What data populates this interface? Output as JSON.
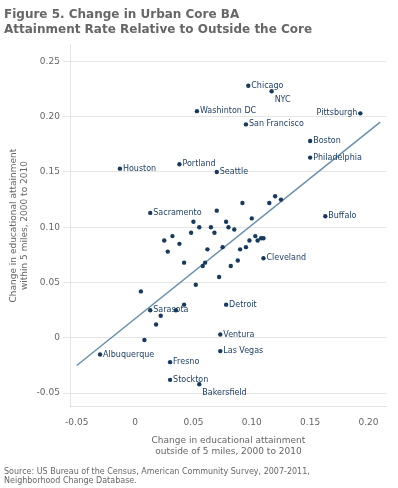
{
  "chart_data": {
    "type": "scatter",
    "title": "Figure 5. Change in Urban Core BA\nAttainment Rate Relative to Outside the Core",
    "xlabel": "Change in educational attainment\noutside of 5 miles, 2000 to 2010",
    "ylabel": "Change in educational attainment\nwithin 5 miles, 2000 to 2010",
    "source": "Source: US Bureau of the Census, American Community Survey, 2007-2011,\nNeighborhood Change Database.",
    "xlim": [
      -0.055,
      0.215
    ],
    "ylim": [
      -0.062,
      0.265
    ],
    "xticks": [
      -0.05,
      0,
      0.05,
      {
        "value": 0.1,
        "label": "0.10"
      },
      0.15,
      {
        "value": 0.2,
        "label": "0.20"
      }
    ],
    "yticks": [
      -0.05,
      0,
      0.05,
      {
        "value": 0.1,
        "label": "0.10"
      },
      0.15,
      {
        "value": 0.2,
        "label": "0.20"
      },
      0.25
    ],
    "grid": "y",
    "series": [
      {
        "type": "scatter",
        "color": "#1a3a5c",
        "x": [
          0.097,
          0.117,
          0.193,
          0.095,
          0.15,
          0.15,
          0.053,
          0.038,
          0.07,
          -0.013,
          0.013,
          0.163,
          0.11,
          0.078,
          0.013,
          0.073,
          0.073,
          0.03,
          0.03,
          0.055,
          -0.03,
          0.025,
          0.028,
          0.032,
          0.038,
          0.042,
          0.048,
          0.05,
          0.052,
          0.055,
          0.058,
          0.06,
          0.062,
          0.065,
          0.068,
          0.07,
          0.072,
          0.075,
          0.078,
          0.08,
          0.082,
          0.085,
          0.088,
          0.09,
          0.092,
          0.095,
          0.098,
          0.1,
          0.103,
          0.105,
          0.108,
          0.11,
          0.115,
          0.12,
          0.125,
          0.018,
          0.022,
          0.035,
          0.042,
          0.005,
          0.008
        ],
        "values": [
          0.228,
          0.223,
          0.203,
          0.193,
          0.178,
          0.163,
          0.205,
          0.157,
          0.15,
          0.153,
          0.113,
          0.11,
          0.072,
          0.03,
          0.025,
          0.003,
          -0.012,
          -0.022,
          -0.038,
          -0.042,
          -0.015,
          0.088,
          0.078,
          0.092,
          0.085,
          0.068,
          0.095,
          0.105,
          0.048,
          0.1,
          0.065,
          0.068,
          0.08,
          0.1,
          0.095,
          0.115,
          0.055,
          0.082,
          0.105,
          0.1,
          0.065,
          0.098,
          0.07,
          0.08,
          0.122,
          0.082,
          0.088,
          0.108,
          0.092,
          0.088,
          0.09,
          0.09,
          0.122,
          0.128,
          0.125,
          0.012,
          0.02,
          0.025,
          0.03,
          0.042,
          -0.002
        ]
      },
      {
        "type": "line",
        "color": "#6b8fa8",
        "x": [
          -0.05,
          0.21
        ],
        "values": [
          -0.025,
          0.195
        ]
      }
    ],
    "annotations": [
      {
        "text": "Chicago",
        "x": 0.097,
        "y": 0.228
      },
      {
        "text": "NYC",
        "x": 0.117,
        "y": 0.223
      },
      {
        "text": "Pittsburgh",
        "x": 0.193,
        "y": 0.203
      },
      {
        "text": "San Francisco",
        "x": 0.095,
        "y": 0.193
      },
      {
        "text": "Boston",
        "x": 0.15,
        "y": 0.178
      },
      {
        "text": "Philadelphia",
        "x": 0.15,
        "y": 0.163
      },
      {
        "text": "Washinton DC",
        "x": 0.053,
        "y": 0.205
      },
      {
        "text": "Portland",
        "x": 0.038,
        "y": 0.157
      },
      {
        "text": "Seattle",
        "x": 0.07,
        "y": 0.15
      },
      {
        "text": "Houston",
        "x": -0.013,
        "y": 0.153
      },
      {
        "text": "Sacramento",
        "x": 0.013,
        "y": 0.113
      },
      {
        "text": "Buffalo",
        "x": 0.163,
        "y": 0.11
      },
      {
        "text": "Cleveland",
        "x": 0.11,
        "y": 0.072
      },
      {
        "text": "Detroit",
        "x": 0.078,
        "y": 0.03
      },
      {
        "text": "Sarasota",
        "x": 0.013,
        "y": 0.025
      },
      {
        "text": "Ventura",
        "x": 0.073,
        "y": 0.003
      },
      {
        "text": "Las Vegas",
        "x": 0.073,
        "y": -0.012
      },
      {
        "text": "Fresno",
        "x": 0.03,
        "y": -0.022
      },
      {
        "text": "Stockton",
        "x": 0.03,
        "y": -0.038
      },
      {
        "text": "Bakersfield",
        "x": 0.055,
        "y": -0.042
      },
      {
        "text": "Albuquerque",
        "x": -0.03,
        "y": -0.015
      }
    ]
  }
}
